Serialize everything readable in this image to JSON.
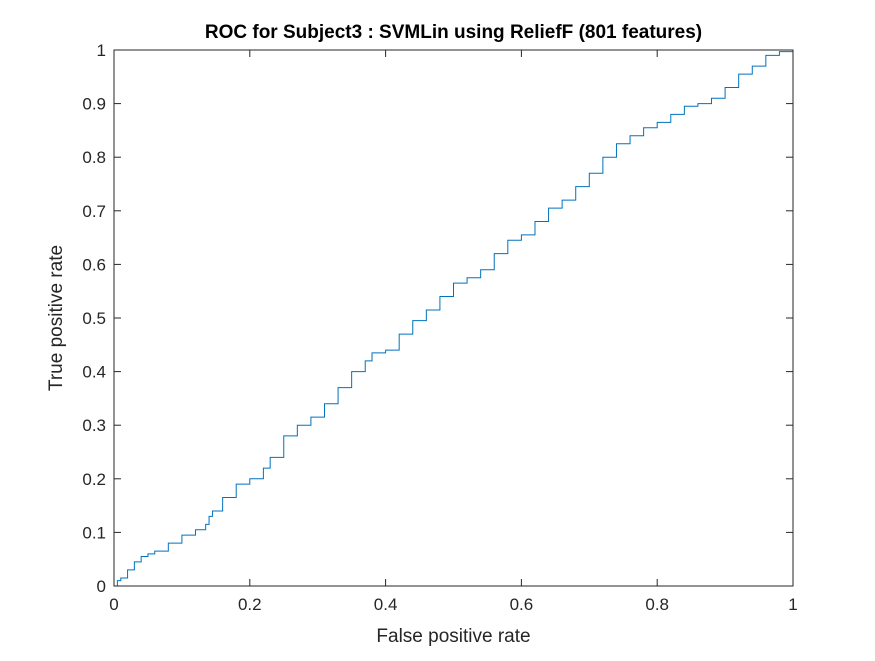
{
  "chart_data": {
    "type": "line",
    "title": "ROC for Subject3 : SVMLin using ReliefF (801 features)",
    "xlabel": "False positive rate",
    "ylabel": "True positive rate",
    "xlim": [
      0,
      1
    ],
    "ylim": [
      0,
      1
    ],
    "grid": false,
    "x_ticks": [
      0,
      0.2,
      0.4,
      0.6,
      0.8,
      1
    ],
    "x_tick_labels": [
      "0",
      "0.2",
      "0.4",
      "0.6",
      "0.8",
      "1"
    ],
    "y_ticks": [
      0,
      0.1,
      0.2,
      0.3,
      0.4,
      0.5,
      0.6,
      0.7,
      0.8,
      0.9,
      1
    ],
    "y_tick_labels": [
      "0",
      "0.1",
      "0.2",
      "0.3",
      "0.4",
      "0.5",
      "0.6",
      "0.7",
      "0.8",
      "0.9",
      "1"
    ],
    "line_color": "#0072BD",
    "series": [
      {
        "x": [
          0,
          0.005,
          0.01,
          0.02,
          0.03,
          0.04,
          0.05,
          0.06,
          0.08,
          0.1,
          0.12,
          0.135,
          0.14,
          0.145,
          0.16,
          0.18,
          0.2,
          0.22,
          0.23,
          0.25,
          0.27,
          0.29,
          0.31,
          0.33,
          0.35,
          0.37,
          0.38,
          0.4,
          0.42,
          0.44,
          0.46,
          0.48,
          0.5,
          0.52,
          0.54,
          0.56,
          0.58,
          0.6,
          0.62,
          0.64,
          0.66,
          0.68,
          0.7,
          0.72,
          0.74,
          0.76,
          0.78,
          0.8,
          0.82,
          0.84,
          0.86,
          0.88,
          0.9,
          0.92,
          0.94,
          0.96,
          0.98,
          1
        ],
        "y": [
          0,
          0.01,
          0.015,
          0.03,
          0.045,
          0.055,
          0.06,
          0.065,
          0.08,
          0.095,
          0.105,
          0.115,
          0.13,
          0.14,
          0.165,
          0.19,
          0.2,
          0.22,
          0.24,
          0.28,
          0.3,
          0.315,
          0.34,
          0.37,
          0.4,
          0.42,
          0.435,
          0.44,
          0.47,
          0.495,
          0.515,
          0.54,
          0.565,
          0.575,
          0.59,
          0.62,
          0.645,
          0.655,
          0.68,
          0.705,
          0.72,
          0.745,
          0.77,
          0.8,
          0.825,
          0.84,
          0.855,
          0.865,
          0.88,
          0.895,
          0.9,
          0.91,
          0.93,
          0.955,
          0.97,
          0.99,
          0.997,
          1
        ]
      }
    ]
  }
}
